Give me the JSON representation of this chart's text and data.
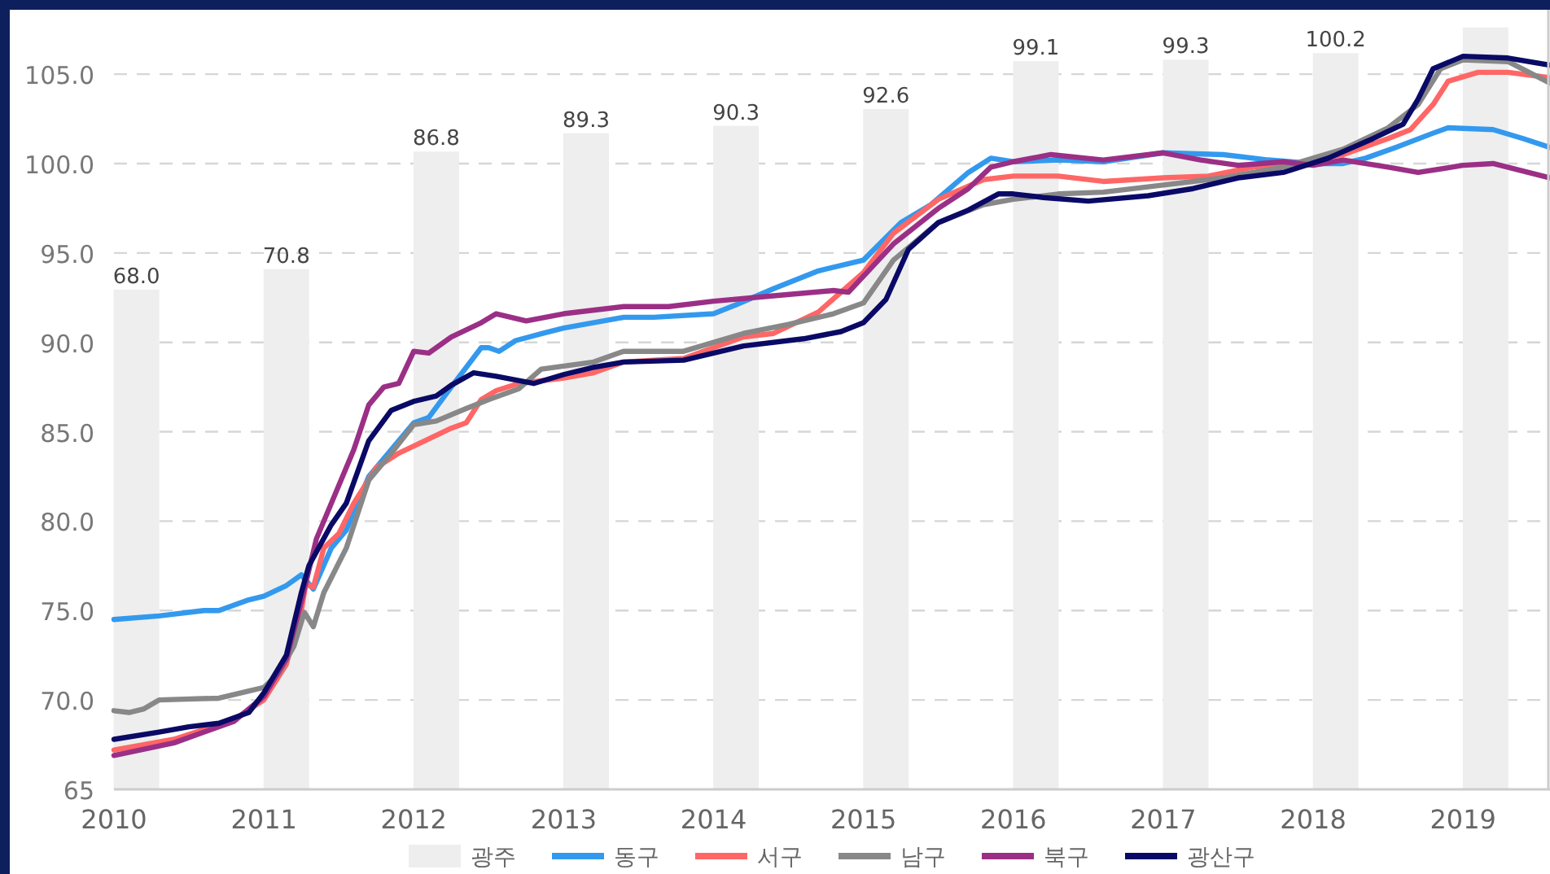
{
  "chart_data": {
    "type": "line",
    "xlim": [
      2010,
      2019.58
    ],
    "ylim": [
      65,
      108.6
    ],
    "y2lim": [
      0,
      106.1
    ],
    "xticks": [
      2010,
      2011,
      2012,
      2013,
      2014,
      2015,
      2016,
      2017,
      2018,
      2019
    ],
    "yticks": [
      65,
      {
        "value": 70,
        "label": "70.0"
      },
      {
        "value": 75,
        "label": "75.0"
      },
      {
        "value": 80,
        "label": "80.0"
      },
      {
        "value": 85,
        "label": "85.0"
      },
      {
        "value": 90,
        "label": "90.0"
      },
      {
        "value": 95,
        "label": "95.0"
      },
      {
        "value": 100,
        "label": "100.0"
      },
      {
        "value": 105,
        "label": "105.0"
      }
    ],
    "grid": "y",
    "legend": "bottom",
    "series": [
      {
        "name": "광주",
        "type": "bar",
        "axis": "y2",
        "color": "#eeeeee",
        "x": [
          2010.15,
          2011.15,
          2012.15,
          2013.15,
          2014.15,
          2015.15,
          2016.15,
          2017.15,
          2018.15,
          2019.15
        ],
        "values": [
          68.0,
          70.8,
          86.8,
          89.3,
          90.3,
          92.6,
          99.1,
          99.3,
          100.2,
          103.7
        ],
        "value_labels": [
          "68.0",
          "70.8",
          "86.8",
          "89.3",
          "90.3",
          "92.6",
          "99.1",
          "99.3",
          "100.2",
          null
        ]
      },
      {
        "name": "동구",
        "color": "#3399ee",
        "x": [
          2010.0,
          2010.3,
          2010.6,
          2010.7,
          2010.9,
          2011.0,
          2011.15,
          2011.25,
          2011.33,
          2011.45,
          2011.55,
          2011.7,
          2011.85,
          2012.0,
          2012.1,
          2012.25,
          2012.45,
          2012.5,
          2012.57,
          2012.68,
          2012.86,
          2013.0,
          2013.4,
          2013.6,
          2014.0,
          2014.15,
          2014.4,
          2014.7,
          2015.0,
          2015.25,
          2015.45,
          2015.7,
          2015.85,
          2016.0,
          2016.3,
          2016.6,
          2017.0,
          2017.4,
          2017.7,
          2018.0,
          2018.2,
          2018.35,
          2018.55,
          2018.8,
          2018.9,
          2019.2,
          2019.4,
          2019.58
        ],
        "values": [
          74.5,
          74.7,
          75.0,
          75.0,
          75.6,
          75.8,
          76.4,
          77.0,
          76.2,
          78.5,
          79.5,
          82.5,
          84.0,
          85.5,
          85.8,
          87.5,
          89.7,
          89.7,
          89.5,
          90.1,
          90.5,
          90.8,
          91.4,
          91.4,
          91.6,
          92.1,
          93.0,
          94.0,
          94.6,
          96.7,
          97.7,
          99.5,
          100.3,
          100.1,
          100.2,
          100.1,
          100.6,
          100.5,
          100.2,
          100.0,
          100.0,
          100.3,
          100.9,
          101.7,
          102.0,
          101.9,
          101.4,
          100.9
        ]
      },
      {
        "name": "서구",
        "color": "#ff6666",
        "x": [
          2010.0,
          2010.4,
          2010.8,
          2011.0,
          2011.15,
          2011.25,
          2011.28,
          2011.33,
          2011.4,
          2011.5,
          2011.6,
          2011.75,
          2011.9,
          2012.0,
          2012.1,
          2012.25,
          2012.35,
          2012.45,
          2012.55,
          2012.7,
          2013.0,
          2013.2,
          2013.4,
          2013.8,
          2014.2,
          2014.4,
          2014.7,
          2015.0,
          2015.2,
          2015.5,
          2015.8,
          2016.0,
          2016.3,
          2016.6,
          2017.0,
          2017.3,
          2017.6,
          2017.9,
          2018.2,
          2018.5,
          2018.65,
          2018.8,
          2018.9,
          2019.1,
          2019.3,
          2019.58
        ],
        "values": [
          67.2,
          67.8,
          68.9,
          70.0,
          72.0,
          75.0,
          76.5,
          76.3,
          78.5,
          79.3,
          81.0,
          83.0,
          83.8,
          84.2,
          84.6,
          85.2,
          85.5,
          86.8,
          87.3,
          87.7,
          88.0,
          88.3,
          88.9,
          89.1,
          90.3,
          90.5,
          91.7,
          93.9,
          96.1,
          98.0,
          99.1,
          99.3,
          99.3,
          99.0,
          99.2,
          99.3,
          99.8,
          100.0,
          100.5,
          101.4,
          101.9,
          103.3,
          104.6,
          105.1,
          105.1,
          104.8
        ]
      },
      {
        "name": "남구",
        "color": "#888888",
        "x": [
          2010.0,
          2010.1,
          2010.2,
          2010.3,
          2010.7,
          2010.9,
          2011.0,
          2011.1,
          2011.2,
          2011.27,
          2011.33,
          2011.4,
          2011.55,
          2011.7,
          2011.85,
          2012.0,
          2012.15,
          2012.35,
          2012.5,
          2012.7,
          2012.85,
          2013.2,
          2013.4,
          2013.8,
          2014.2,
          2014.5,
          2014.8,
          2015.0,
          2015.2,
          2015.5,
          2015.8,
          2016.0,
          2016.3,
          2016.6,
          2017.0,
          2017.4,
          2017.8,
          2018.2,
          2018.5,
          2018.7,
          2018.85,
          2019.0,
          2019.3,
          2019.58
        ],
        "values": [
          69.4,
          69.3,
          69.5,
          70.0,
          70.1,
          70.5,
          70.7,
          71.5,
          73.0,
          74.9,
          74.1,
          76.0,
          78.5,
          82.3,
          83.8,
          85.4,
          85.6,
          86.3,
          86.8,
          87.4,
          88.5,
          88.9,
          89.5,
          89.5,
          90.5,
          91.0,
          91.6,
          92.2,
          94.6,
          96.7,
          97.7,
          98.0,
          98.3,
          98.4,
          98.8,
          99.2,
          99.8,
          100.8,
          102.0,
          103.3,
          105.3,
          105.8,
          105.7,
          104.5
        ]
      },
      {
        "name": "북구",
        "color": "#9b2f86",
        "x": [
          2010.0,
          2010.4,
          2010.8,
          2011.0,
          2011.15,
          2011.25,
          2011.35,
          2011.5,
          2011.6,
          2011.7,
          2011.8,
          2011.9,
          2012.0,
          2012.1,
          2012.25,
          2012.45,
          2012.55,
          2012.75,
          2013.0,
          2013.4,
          2013.7,
          2014.0,
          2014.4,
          2014.8,
          2014.9,
          2015.2,
          2015.5,
          2015.7,
          2015.85,
          2016.0,
          2016.25,
          2016.6,
          2017.0,
          2017.25,
          2017.5,
          2017.8,
          2018.0,
          2018.2,
          2018.5,
          2018.7,
          2019.0,
          2019.2,
          2019.58
        ],
        "values": [
          66.9,
          67.6,
          68.8,
          70.2,
          72.3,
          75.5,
          79.0,
          82.0,
          84.0,
          86.5,
          87.5,
          87.7,
          89.5,
          89.4,
          90.3,
          91.1,
          91.6,
          91.2,
          91.6,
          92.0,
          92.0,
          92.3,
          92.6,
          92.9,
          92.8,
          95.5,
          97.5,
          98.6,
          99.8,
          100.1,
          100.5,
          100.2,
          100.6,
          100.2,
          99.9,
          100.1,
          99.9,
          100.2,
          99.8,
          99.5,
          99.9,
          100.0,
          99.2
        ]
      },
      {
        "name": "광산구",
        "color": "#0a0a66",
        "x": [
          2010.0,
          2010.3,
          2010.5,
          2010.7,
          2010.9,
          2011.0,
          2011.15,
          2011.25,
          2011.3,
          2011.45,
          2011.55,
          2011.7,
          2011.85,
          2012.0,
          2012.15,
          2012.25,
          2012.4,
          2012.55,
          2012.8,
          2013.0,
          2013.2,
          2013.4,
          2013.8,
          2014.2,
          2014.6,
          2014.85,
          2015.0,
          2015.15,
          2015.3,
          2015.5,
          2015.7,
          2015.9,
          2016.0,
          2016.2,
          2016.5,
          2016.9,
          2017.2,
          2017.5,
          2017.8,
          2018.1,
          2018.4,
          2018.6,
          2018.7,
          2018.8,
          2019.0,
          2019.3,
          2019.58
        ],
        "values": [
          67.8,
          68.2,
          68.5,
          68.7,
          69.3,
          70.4,
          72.5,
          76.0,
          77.5,
          79.8,
          81.0,
          84.5,
          86.2,
          86.7,
          87.0,
          87.6,
          88.3,
          88.1,
          87.7,
          88.2,
          88.6,
          88.9,
          89.0,
          89.8,
          90.2,
          90.6,
          91.1,
          92.4,
          95.2,
          96.7,
          97.4,
          98.3,
          98.3,
          98.1,
          97.9,
          98.2,
          98.6,
          99.2,
          99.5,
          100.3,
          101.4,
          102.2,
          103.6,
          105.3,
          106.0,
          105.9,
          105.5
        ]
      }
    ]
  }
}
